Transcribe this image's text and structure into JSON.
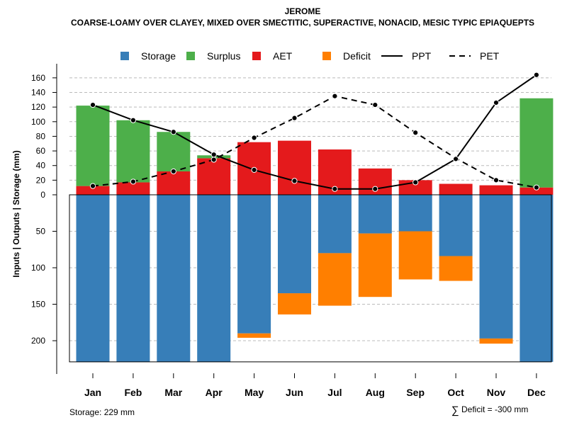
{
  "chart_data": {
    "type": "water-balance",
    "title": "JEROME",
    "subtitle": "COARSE-LOAMY OVER CLAYEY, MIXED OVER SMECTITIC, SUPERACTIVE, NONACID, MESIC TYPIC EPIAQUEPTS",
    "ylabel": "Inputs | Outputs | Storage    (mm)",
    "months": [
      "Jan",
      "Feb",
      "Mar",
      "Apr",
      "May",
      "Jun",
      "Jul",
      "Aug",
      "Sep",
      "Oct",
      "Nov",
      "Dec"
    ],
    "upper_ticks": [
      0,
      20,
      40,
      60,
      80,
      100,
      120,
      140,
      160
    ],
    "lower_ticks": [
      50,
      100,
      150,
      200
    ],
    "upper_ylim": [
      0,
      170
    ],
    "lower_ylim": [
      0,
      229
    ],
    "series": {
      "AET": [
        12,
        17,
        32,
        50,
        72,
        74,
        62,
        36,
        20,
        15,
        13,
        10
      ],
      "Surplus": [
        110,
        85,
        54,
        4,
        0,
        0,
        0,
        0,
        0,
        0,
        0,
        122
      ],
      "Storage": [
        229,
        229,
        229,
        229,
        190,
        135,
        80,
        53,
        50,
        84,
        197,
        229
      ],
      "Deficit": [
        0,
        0,
        0,
        0,
        6,
        29,
        72,
        87,
        66,
        34,
        7,
        0
      ],
      "PPT": [
        123,
        102,
        86,
        55,
        34,
        19,
        8,
        8,
        17,
        49,
        126,
        164
      ],
      "PET": [
        12,
        18,
        32,
        48,
        78,
        105,
        135,
        123,
        85,
        50,
        20,
        10
      ]
    },
    "legend": [
      {
        "name": "Storage",
        "kind": "box",
        "color": "#377EB8"
      },
      {
        "name": "Surplus",
        "kind": "box",
        "color": "#4DAF4A"
      },
      {
        "name": "AET",
        "kind": "box",
        "color": "#E41A1C"
      },
      {
        "name": "Deficit",
        "kind": "box",
        "color": "#FF7F00"
      },
      {
        "name": "PPT",
        "kind": "solid",
        "color": "#000000"
      },
      {
        "name": "PET",
        "kind": "dashed",
        "color": "#000000"
      }
    ],
    "legend_position": "top-center",
    "grid": "horizontal dashed",
    "colors": {
      "storage": "#377EB8",
      "surplus": "#4DAF4A",
      "aet": "#E41A1C",
      "deficit": "#FF7F00",
      "grid": "#bbbbbb",
      "line": "#000000"
    }
  },
  "footer": {
    "storage_note": "Storage: 229 mm",
    "deficit_symbol": "∑",
    "deficit_note": "Deficit = -300 mm"
  }
}
